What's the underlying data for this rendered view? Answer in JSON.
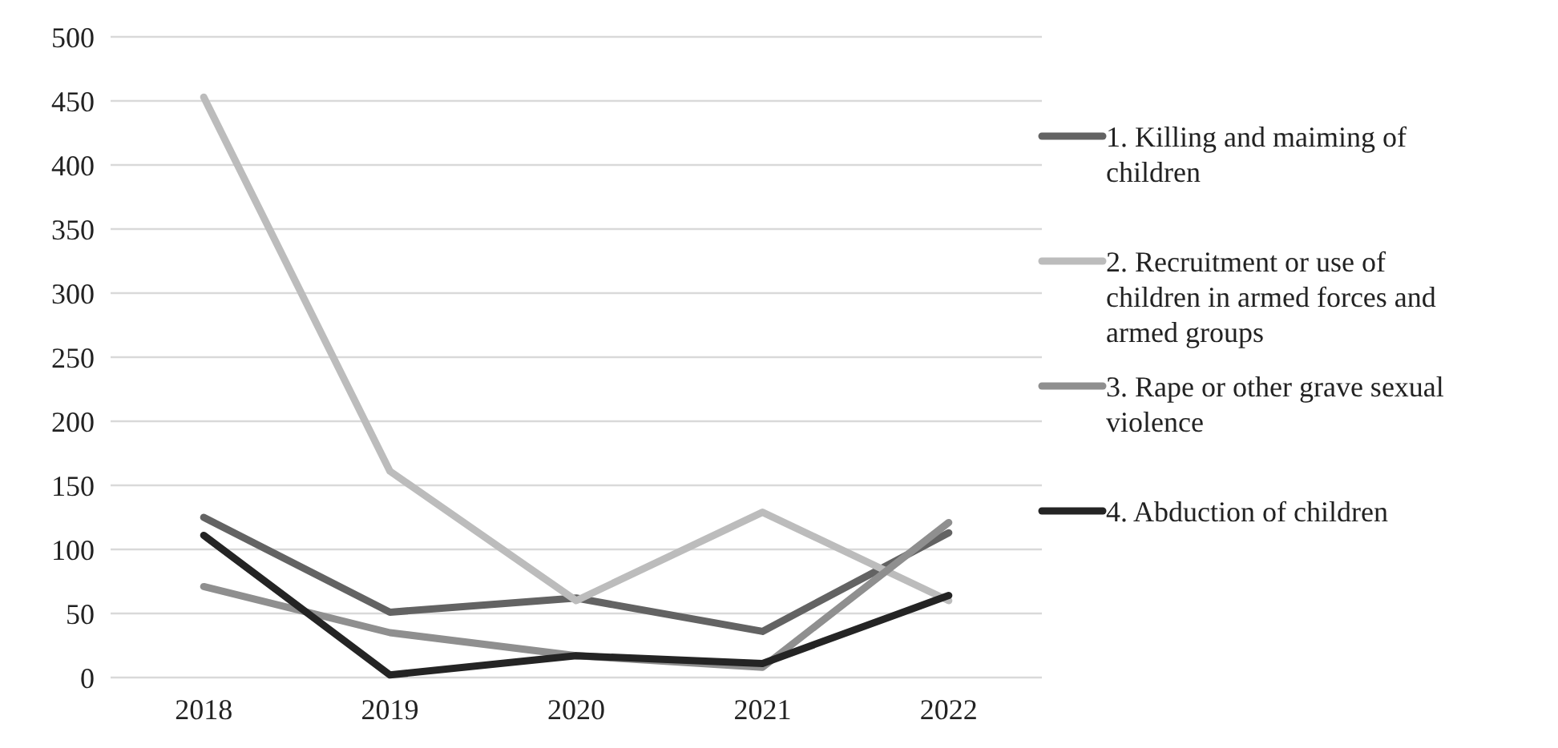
{
  "chart_data": {
    "type": "line",
    "categories": [
      "2018",
      "2019",
      "2020",
      "2021",
      "2022"
    ],
    "series": [
      {
        "name": "1. Killing and maiming of children",
        "color": "#636363",
        "values": [
          125,
          51,
          62,
          36,
          113
        ]
      },
      {
        "name": "2. Recruitment or use of children in armed forces and armed groups",
        "color": "#bcbcbc",
        "values": [
          453,
          161,
          60,
          129,
          60
        ]
      },
      {
        "name": "3. Rape or other grave sexual violence",
        "color": "#8f8f8f",
        "values": [
          71,
          35,
          17,
          8,
          121
        ]
      },
      {
        "name": "4. Abduction of children",
        "color": "#242424",
        "values": [
          111,
          2,
          17,
          11,
          64
        ]
      }
    ],
    "ylim": [
      0,
      500
    ],
    "yticks": [
      0,
      50,
      100,
      150,
      200,
      250,
      300,
      350,
      400,
      450,
      500
    ],
    "grid": "y",
    "legend": "right",
    "marker": "none",
    "line_style": "solid"
  }
}
